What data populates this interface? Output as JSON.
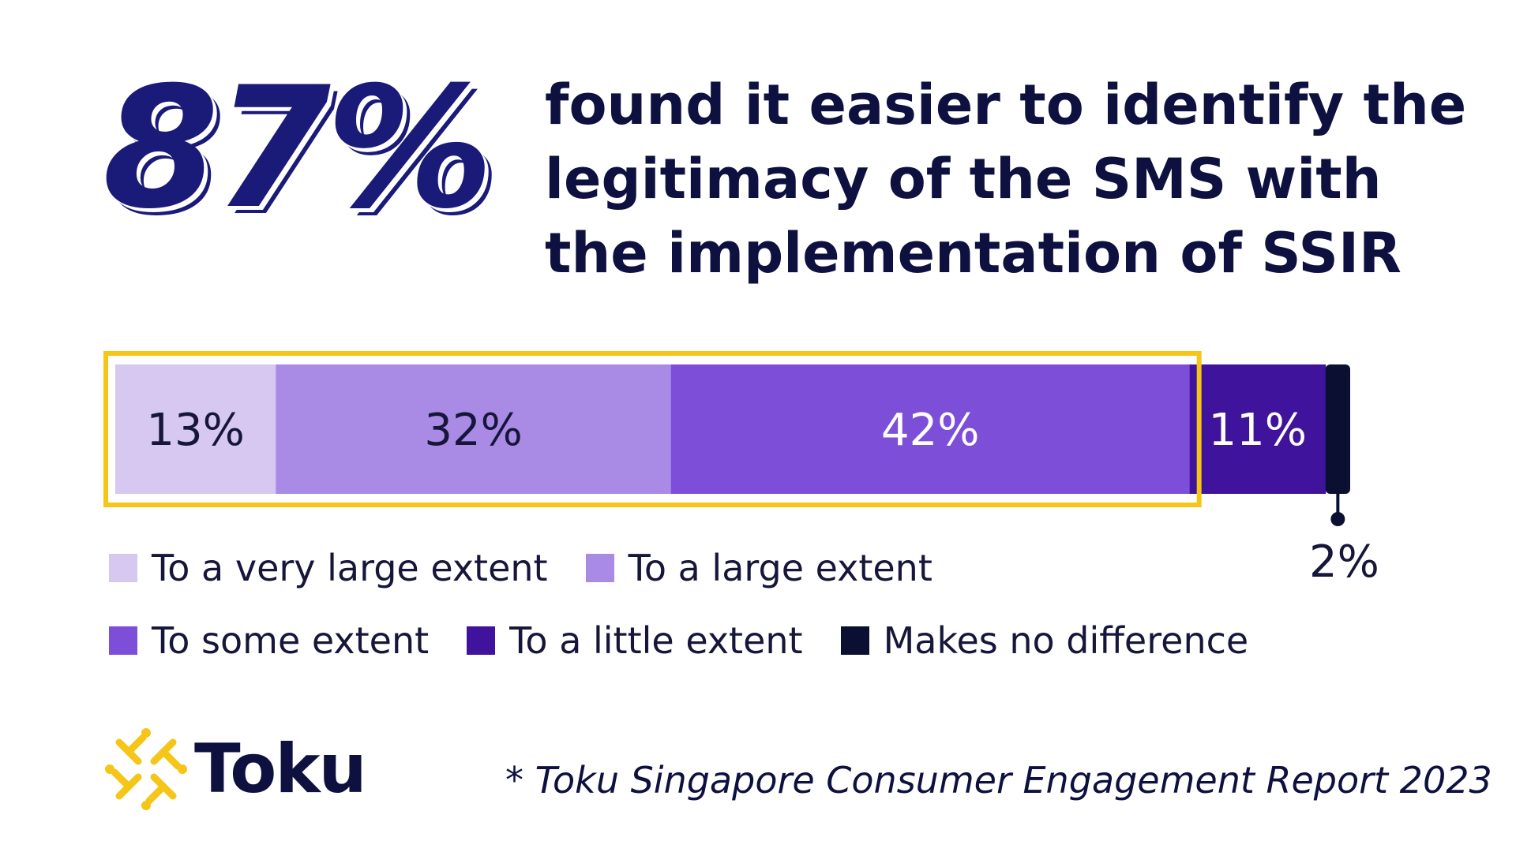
{
  "headline": {
    "stat": "87%",
    "text": "found it easier to identify the legitimacy of the SMS with the implementation of SSIR"
  },
  "chart_data": {
    "type": "bar",
    "stacked": true,
    "orientation": "horizontal",
    "unit": "%",
    "series": [
      {
        "name": "To a very large extent",
        "value": 13,
        "label": "13%",
        "color": "#d6c8f1"
      },
      {
        "name": "To a large extent",
        "value": 32,
        "label": "32%",
        "color": "#a98be6"
      },
      {
        "name": "To some extent",
        "value": 42,
        "label": "42%",
        "color": "#7d4fd9"
      },
      {
        "name": "To a little extent",
        "value": 11,
        "label": "11%",
        "color": "#3f139c"
      },
      {
        "name": "Makes no difference",
        "value": 2,
        "label": "2%",
        "color": "#0b1033"
      }
    ],
    "highlight_color": "#f5c518",
    "legend_placement": "bottom"
  },
  "footer": {
    "logo_text": "Toku",
    "source": "* Toku Singapore Consumer Engagement Report 2023"
  },
  "colors": {
    "navy": "#1a1a78",
    "text_dark": "#0e1140",
    "accent_yellow": "#f5c518"
  }
}
